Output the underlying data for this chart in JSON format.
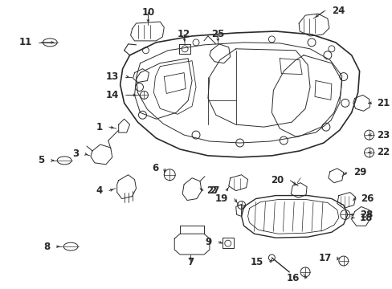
{
  "bg_color": "#ffffff",
  "line_color": "#2a2a2a",
  "figsize": [
    4.89,
    3.6
  ],
  "dpi": 100,
  "xlim": [
    0,
    489
  ],
  "ylim": [
    0,
    360
  ]
}
